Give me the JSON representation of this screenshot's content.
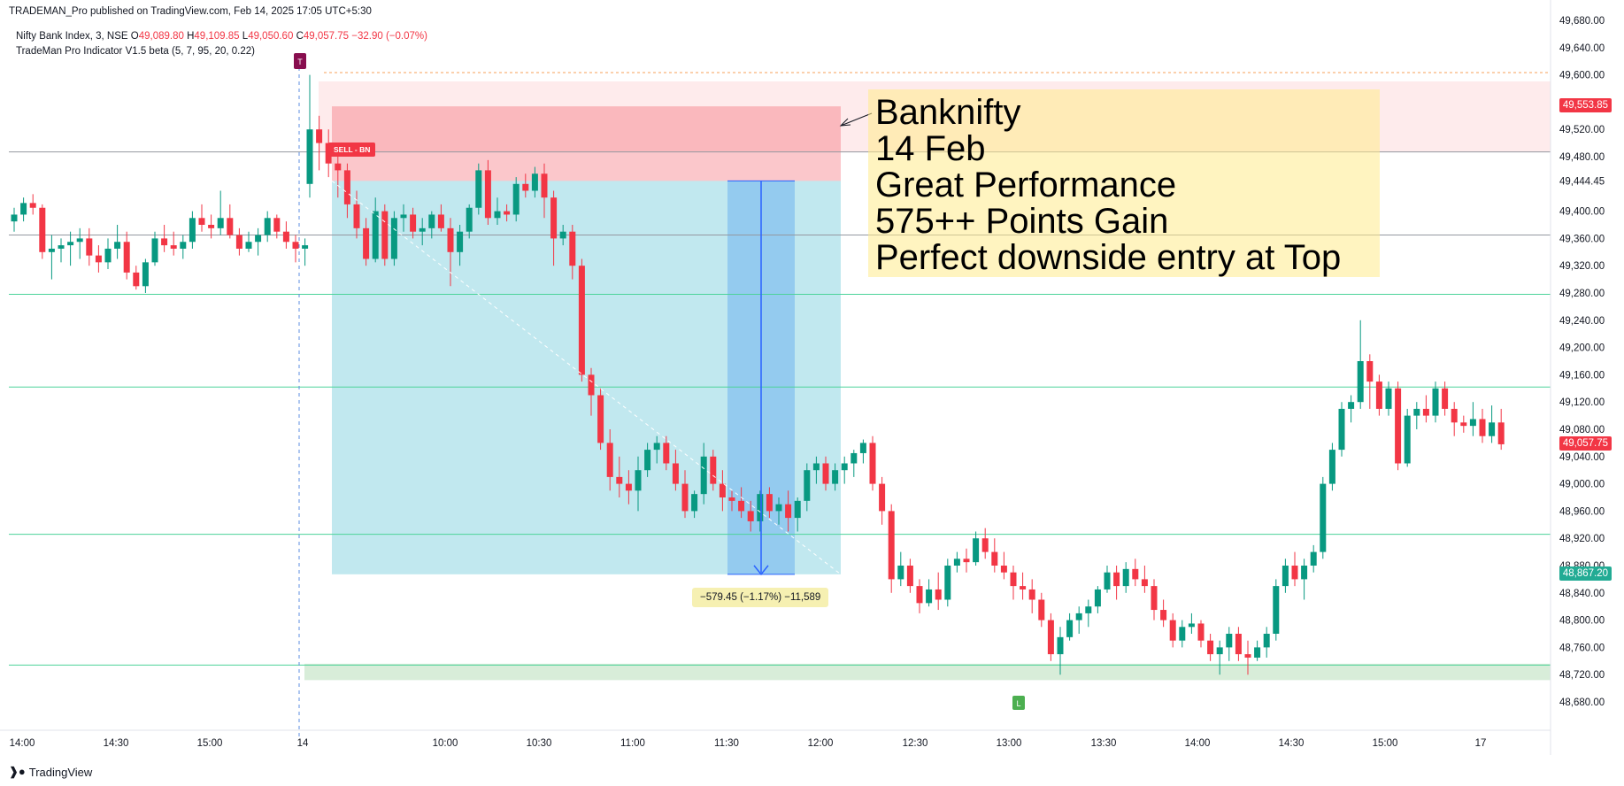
{
  "header": {
    "publisher": "TRADEMAN_Pro published on TradingView.com, Feb 14, 2025 17:05 UTC+5:30",
    "symbol": "Nifty Bank Index, 3, NSE",
    "open_label": "O",
    "open_value": "49,089.80",
    "high_label": "H",
    "high_value": "49,109.85",
    "low_label": "L",
    "low_value": "49,050.60",
    "close_label": "C",
    "close_value": "49,057.75",
    "change": "−32.90 (−0.07%)",
    "indicator": "TradeMan Pro Indicator V1.5 beta (5, 7, 95, 20, 0.22)"
  },
  "annotation": {
    "lines": [
      "Banknifty",
      "14 Feb",
      "Great Performance",
      "575++ Points Gain",
      "Perfect downside entry at Top"
    ]
  },
  "measure": {
    "label": "−579.45 (−1.17%) −11,589"
  },
  "signals": {
    "sell_label": "SELL - BN",
    "t_marker": "T",
    "l_marker": "L"
  },
  "price_tags": [
    {
      "value": "49,553.85",
      "price": 49553.85,
      "color": "#f23645"
    },
    {
      "value": "49,057.75",
      "price": 49057.75,
      "color": "#f23645"
    },
    {
      "value": "48,867.20",
      "price": 48867.2,
      "color": "#22ab94"
    }
  ],
  "colors": {
    "up": "#089981",
    "down": "#f23645",
    "hline": "#4cd39a",
    "grid_text": "#131722"
  },
  "footer": {
    "brand": "TradingView"
  },
  "chart_data": {
    "type": "candlestick",
    "title": "Nifty Bank Index, 3, NSE",
    "ylim": [
      48660,
      49700
    ],
    "y_ticks": [
      48680,
      48720,
      48760,
      48800,
      48840,
      48880,
      48920,
      48960,
      49000,
      49040,
      49080,
      49120,
      49160,
      49200,
      49240,
      49280,
      49320,
      49360,
      49400,
      49444.45,
      49480,
      49520,
      49560,
      49600,
      49640,
      49680
    ],
    "y_tick_labels": [
      "48,680.00",
      "48,720.00",
      "48,760.00",
      "48,800.00",
      "48,840.00",
      "48,880.00",
      "48,920.00",
      "48,960.00",
      "49,000.00",
      "49,040.00",
      "49,080.00",
      "49,120.00",
      "49,160.00",
      "49,200.00",
      "49,240.00",
      "49,280.00",
      "49,320.00",
      "49,360.00",
      "49,400.00",
      "49,444.45",
      "49,480.00",
      "49,520.00",
      "49,560.00",
      "49,600.00",
      "49,640.00",
      "49,680.00"
    ],
    "x_ticks": [
      "14:00",
      "14:30",
      "15:00",
      "14",
      "10:00",
      "10:30",
      "11:00",
      "11:30",
      "12:00",
      "12:30",
      "13:00",
      "13:30",
      "14:00",
      "14:30",
      "15:00",
      "17"
    ],
    "horizontal_levels": [
      49487,
      49365,
      49278,
      49142,
      48926,
      48734
    ],
    "trade": {
      "entry": 49444.45,
      "stop": 49553.85,
      "target": 48867.2,
      "measured_move": -579.45
    },
    "support_zone": [
      48712,
      48736
    ],
    "candles": [
      [
        49385,
        49405,
        49370,
        49395
      ],
      [
        49395,
        49420,
        49385,
        49412
      ],
      [
        49412,
        49425,
        49395,
        49405
      ],
      [
        49405,
        49410,
        49330,
        49340
      ],
      [
        49340,
        49365,
        49300,
        49345
      ],
      [
        49345,
        49360,
        49325,
        49350
      ],
      [
        49350,
        49370,
        49320,
        49355
      ],
      [
        49355,
        49375,
        49330,
        49360
      ],
      [
        49360,
        49375,
        49320,
        49335
      ],
      [
        49335,
        49350,
        49310,
        49325
      ],
      [
        49325,
        49360,
        49315,
        49345
      ],
      [
        49345,
        49380,
        49330,
        49355
      ],
      [
        49355,
        49370,
        49300,
        49310
      ],
      [
        49310,
        49320,
        49285,
        49290
      ],
      [
        49290,
        49330,
        49280,
        49325
      ],
      [
        49325,
        49370,
        49320,
        49360
      ],
      [
        49360,
        49380,
        49340,
        49350
      ],
      [
        49350,
        49370,
        49335,
        49345
      ],
      [
        49345,
        49365,
        49330,
        49355
      ],
      [
        49355,
        49400,
        49345,
        49390
      ],
      [
        49390,
        49410,
        49370,
        49380
      ],
      [
        49380,
        49395,
        49360,
        49375
      ],
      [
        49375,
        49430,
        49365,
        49390
      ],
      [
        49390,
        49410,
        49360,
        49365
      ],
      [
        49365,
        49375,
        49335,
        49345
      ],
      [
        49345,
        49370,
        49340,
        49355
      ],
      [
        49355,
        49375,
        49335,
        49365
      ],
      [
        49365,
        49400,
        49355,
        49390
      ],
      [
        49390,
        49395,
        49360,
        49370
      ],
      [
        49370,
        49385,
        49345,
        49355
      ],
      [
        49355,
        49365,
        49325,
        49345
      ],
      [
        49345,
        49360,
        49320,
        49350
      ],
      [
        49440,
        49600,
        49420,
        49520
      ],
      [
        49520,
        49540,
        49460,
        49500
      ],
      [
        49500,
        49520,
        49450,
        49470
      ],
      [
        49470,
        49490,
        49420,
        49460
      ],
      [
        49460,
        49470,
        49390,
        49410
      ],
      [
        49410,
        49430,
        49360,
        49375
      ],
      [
        49375,
        49390,
        49320,
        49330
      ],
      [
        49330,
        49420,
        49325,
        49400
      ],
      [
        49400,
        49410,
        49320,
        49330
      ],
      [
        49330,
        49400,
        49320,
        49390
      ],
      [
        49390,
        49410,
        49370,
        49395
      ],
      [
        49395,
        49405,
        49360,
        49370
      ],
      [
        49370,
        49390,
        49350,
        49375
      ],
      [
        49375,
        49400,
        49360,
        49395
      ],
      [
        49395,
        49410,
        49370,
        49375
      ],
      [
        49375,
        49390,
        49290,
        49340
      ],
      [
        49340,
        49380,
        49320,
        49370
      ],
      [
        49370,
        49410,
        49360,
        49405
      ],
      [
        49405,
        49470,
        49395,
        49460
      ],
      [
        49460,
        49475,
        49380,
        49390
      ],
      [
        49390,
        49420,
        49380,
        49400
      ],
      [
        49400,
        49410,
        49385,
        49395
      ],
      [
        49395,
        49450,
        49385,
        49440
      ],
      [
        49440,
        49455,
        49420,
        49430
      ],
      [
        49430,
        49465,
        49420,
        49455
      ],
      [
        49455,
        49470,
        49390,
        49420
      ],
      [
        49420,
        49430,
        49320,
        49360
      ],
      [
        49360,
        49380,
        49350,
        49370
      ],
      [
        49370,
        49380,
        49300,
        49320
      ],
      [
        49320,
        49330,
        49150,
        49160
      ],
      [
        49160,
        49170,
        49100,
        49130
      ],
      [
        49130,
        49140,
        49050,
        49060
      ],
      [
        49060,
        49080,
        48990,
        49010
      ],
      [
        49010,
        49040,
        48980,
        49000
      ],
      [
        49000,
        49020,
        48970,
        48990
      ],
      [
        48990,
        49040,
        48960,
        49020
      ],
      [
        49020,
        49060,
        49010,
        49050
      ],
      [
        49050,
        49070,
        49030,
        49060
      ],
      [
        49060,
        49070,
        49020,
        49030
      ],
      [
        49030,
        49050,
        48990,
        49000
      ],
      [
        49000,
        49020,
        48950,
        48960
      ],
      [
        48960,
        48990,
        48950,
        48985
      ],
      [
        48985,
        49060,
        48970,
        49040
      ],
      [
        49040,
        49050,
        48990,
        49000
      ],
      [
        49000,
        49020,
        48960,
        48980
      ],
      [
        48980,
        48990,
        48960,
        48975
      ],
      [
        48975,
        48995,
        48950,
        48960
      ],
      [
        48960,
        48975,
        48930,
        48945
      ],
      [
        48945,
        48990,
        48930,
        48985
      ],
      [
        48985,
        48995,
        48950,
        48960
      ],
      [
        48960,
        48980,
        48940,
        48970
      ],
      [
        48970,
        48990,
        48930,
        48950
      ],
      [
        48950,
        48980,
        48930,
        48975
      ],
      [
        48975,
        49030,
        48960,
        49020
      ],
      [
        49020,
        49040,
        49000,
        49030
      ],
      [
        49030,
        49040,
        48990,
        49000
      ],
      [
        49000,
        49030,
        48990,
        49020
      ],
      [
        49020,
        49040,
        49000,
        49030
      ],
      [
        49030,
        49050,
        49010,
        49045
      ],
      [
        49045,
        49065,
        49030,
        49060
      ],
      [
        49060,
        49070,
        48990,
        49000
      ],
      [
        49000,
        49010,
        48940,
        48960
      ],
      [
        48960,
        48970,
        48840,
        48860
      ],
      [
        48860,
        48900,
        48850,
        48880
      ],
      [
        48880,
        48890,
        48840,
        48850
      ],
      [
        48850,
        48860,
        48810,
        48825
      ],
      [
        48825,
        48860,
        48820,
        48845
      ],
      [
        48845,
        48870,
        48815,
        48830
      ],
      [
        48830,
        48890,
        48820,
        48880
      ],
      [
        48880,
        48900,
        48870,
        48890
      ],
      [
        48890,
        48905,
        48870,
        48885
      ],
      [
        48885,
        48930,
        48880,
        48920
      ],
      [
        48920,
        48935,
        48890,
        48900
      ],
      [
        48900,
        48920,
        48870,
        48880
      ],
      [
        48880,
        48900,
        48860,
        48870
      ],
      [
        48870,
        48880,
        48830,
        48850
      ],
      [
        48850,
        48870,
        48830,
        48845
      ],
      [
        48845,
        48860,
        48810,
        48830
      ],
      [
        48830,
        48840,
        48790,
        48800
      ],
      [
        48800,
        48810,
        48740,
        48750
      ],
      [
        48750,
        48790,
        48720,
        48775
      ],
      [
        48775,
        48810,
        48770,
        48800
      ],
      [
        48800,
        48820,
        48780,
        48810
      ],
      [
        48810,
        48830,
        48790,
        48820
      ],
      [
        48820,
        48850,
        48810,
        48845
      ],
      [
        48845,
        48880,
        48840,
        48870
      ],
      [
        48870,
        48880,
        48830,
        48850
      ],
      [
        48850,
        48885,
        48840,
        48875
      ],
      [
        48875,
        48890,
        48850,
        48860
      ],
      [
        48860,
        48880,
        48840,
        48850
      ],
      [
        48850,
        48860,
        48800,
        48815
      ],
      [
        48815,
        48830,
        48790,
        48800
      ],
      [
        48800,
        48810,
        48760,
        48770
      ],
      [
        48770,
        48800,
        48760,
        48790
      ],
      [
        48790,
        48810,
        48780,
        48795
      ],
      [
        48795,
        48800,
        48760,
        48770
      ],
      [
        48770,
        48780,
        48740,
        48750
      ],
      [
        48750,
        48770,
        48720,
        48760
      ],
      [
        48760,
        48790,
        48740,
        48780
      ],
      [
        48780,
        48790,
        48740,
        48750
      ],
      [
        48750,
        48770,
        48720,
        48745
      ],
      [
        48745,
        48770,
        48740,
        48760
      ],
      [
        48760,
        48790,
        48745,
        48780
      ],
      [
        48780,
        48860,
        48770,
        48850
      ],
      [
        48850,
        48890,
        48840,
        48880
      ],
      [
        48880,
        48900,
        48850,
        48860
      ],
      [
        48860,
        48890,
        48830,
        48880
      ],
      [
        48880,
        48910,
        48870,
        48900
      ],
      [
        48900,
        49010,
        48890,
        49000
      ],
      [
        49000,
        49060,
        48990,
        49050
      ],
      [
        49050,
        49120,
        49040,
        49110
      ],
      [
        49110,
        49130,
        49090,
        49120
      ],
      [
        49120,
        49240,
        49110,
        49180
      ],
      [
        49180,
        49190,
        49110,
        49150
      ],
      [
        49150,
        49160,
        49100,
        49110
      ],
      [
        49110,
        49150,
        49100,
        49140
      ],
      [
        49140,
        49150,
        49020,
        49030
      ],
      [
        49030,
        49110,
        49025,
        49100
      ],
      [
        49100,
        49120,
        49080,
        49110
      ],
      [
        49110,
        49130,
        49090,
        49100
      ],
      [
        49100,
        49150,
        49090,
        49140
      ],
      [
        49140,
        49150,
        49100,
        49110
      ],
      [
        49110,
        49120,
        49070,
        49090
      ],
      [
        49090,
        49100,
        49075,
        49085
      ],
      [
        49085,
        49120,
        49070,
        49095
      ],
      [
        49095,
        49110,
        49060,
        49070
      ],
      [
        49070,
        49115,
        49060,
        49090
      ],
      [
        49090,
        49110,
        49050,
        49058
      ]
    ]
  }
}
